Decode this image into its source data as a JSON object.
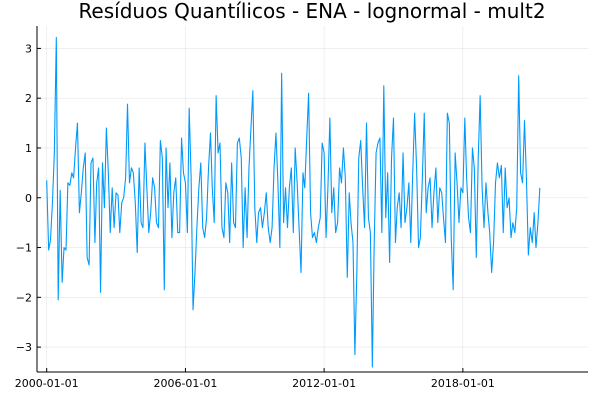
{
  "chart_data": {
    "type": "line",
    "title": "Resíduos Quantílicos - ENA - lognormal - mult2",
    "xlabel": "",
    "ylabel": "",
    "x_start": "2000-01-01",
    "x_frequency": "monthly",
    "x_ticks": [
      "2000-01-01",
      "2006-01-01",
      "2012-01-01",
      "2018-01-01"
    ],
    "xlim": [
      "1999-08-01",
      "2023-06-01"
    ],
    "y_ticks": [
      "3",
      "2",
      "1",
      "0",
      "−1",
      "−2",
      "−3"
    ],
    "y_tick_values": [
      3,
      2,
      1,
      0,
      -1,
      -2,
      -3
    ],
    "ylim": [
      -3.5,
      3.45
    ],
    "grid": true,
    "legend": false,
    "color": "#009AFA",
    "series": [
      {
        "values": [
          0.35,
          -1.05,
          -0.85,
          -0.1,
          0.9,
          3.22,
          -2.05,
          0.15,
          -1.7,
          -1.0,
          -1.05,
          0.3,
          0.25,
          0.5,
          0.4,
          1.0,
          1.5,
          -0.3,
          0.1,
          0.6,
          0.9,
          -1.2,
          -1.35,
          0.7,
          0.8,
          -0.9,
          0.3,
          0.6,
          -1.9,
          0.7,
          -0.2,
          1.4,
          0.5,
          -0.7,
          0.2,
          -0.6,
          0.1,
          0.05,
          -0.7,
          -0.1,
          0.0,
          0.4,
          1.88,
          0.3,
          0.6,
          0.5,
          -0.1,
          -1.1,
          0.6,
          -0.5,
          -0.6,
          1.1,
          0.2,
          -0.7,
          -0.3,
          0.4,
          0.2,
          -0.5,
          -0.6,
          1.15,
          0.8,
          -1.85,
          1.0,
          -0.2,
          0.7,
          -0.8,
          0.1,
          0.4,
          -0.7,
          -0.7,
          1.2,
          0.5,
          0.3,
          -0.7,
          1.8,
          0.4,
          -2.25,
          -1.5,
          -0.6,
          0.2,
          0.7,
          -0.6,
          -0.8,
          -0.4,
          0.6,
          1.3,
          0.2,
          -0.5,
          2.05,
          0.9,
          1.1,
          -0.6,
          -0.8,
          0.3,
          0.1,
          -0.9,
          0.7,
          -0.5,
          -0.6,
          1.1,
          1.2,
          0.8,
          -1.0,
          0.2,
          -0.8,
          0.6,
          1.4,
          2.15,
          -0.2,
          -0.9,
          -0.3,
          -0.2,
          -0.6,
          -0.3,
          0.1,
          -0.6,
          -0.9,
          -0.6,
          0.6,
          1.3,
          0.3,
          -1.0,
          2.5,
          -0.5,
          0.2,
          -0.6,
          0.2,
          0.6,
          -0.7,
          1.0,
          0.3,
          -0.6,
          -1.5,
          0.5,
          0.2,
          1.2,
          2.1,
          -0.3,
          -0.8,
          -0.7,
          -0.9,
          -0.6,
          -0.4,
          1.1,
          0.9,
          -0.8,
          0.2,
          1.6,
          -0.3,
          0.2,
          -0.7,
          -0.5,
          0.6,
          0.3,
          1.0,
          0.4,
          -1.6,
          0.1,
          -0.5,
          -0.9,
          -3.15,
          -1.5,
          0.8,
          1.15,
          0.2,
          -0.6,
          1.5,
          -0.4,
          -0.7,
          -3.4,
          -1.0,
          0.9,
          1.1,
          1.2,
          -0.7,
          2.25,
          -0.4,
          0.5,
          -1.3,
          0.8,
          1.6,
          -0.9,
          -0.2,
          0.1,
          -0.6,
          0.9,
          -0.5,
          -0.2,
          0.3,
          -0.9,
          0.5,
          1.7,
          0.6,
          -1.0,
          -0.8,
          0.4,
          1.7,
          -0.3,
          0.2,
          0.4,
          -0.6,
          0.1,
          0.6,
          -0.5,
          0.2,
          0.1,
          -0.4,
          -0.9,
          1.7,
          1.5,
          -0.8,
          -1.85,
          0.9,
          0.3,
          -0.5,
          0.2,
          0.1,
          1.6,
          0.4,
          -0.4,
          -0.7,
          1.0,
          0.6,
          -1.2,
          0.8,
          2.05,
          0.2,
          -0.6,
          0.3,
          -0.3,
          -0.7,
          -1.5,
          -0.9,
          0.3,
          0.7,
          0.4,
          0.65,
          -0.7,
          0.6,
          -0.2,
          0.0,
          -0.8,
          -0.5,
          -0.7,
          -0.2,
          2.45,
          0.5,
          0.3,
          1.55,
          0.4,
          -1.15,
          -0.6,
          -0.9,
          -0.3,
          -1.0,
          -0.5,
          0.2
        ]
      }
    ]
  }
}
